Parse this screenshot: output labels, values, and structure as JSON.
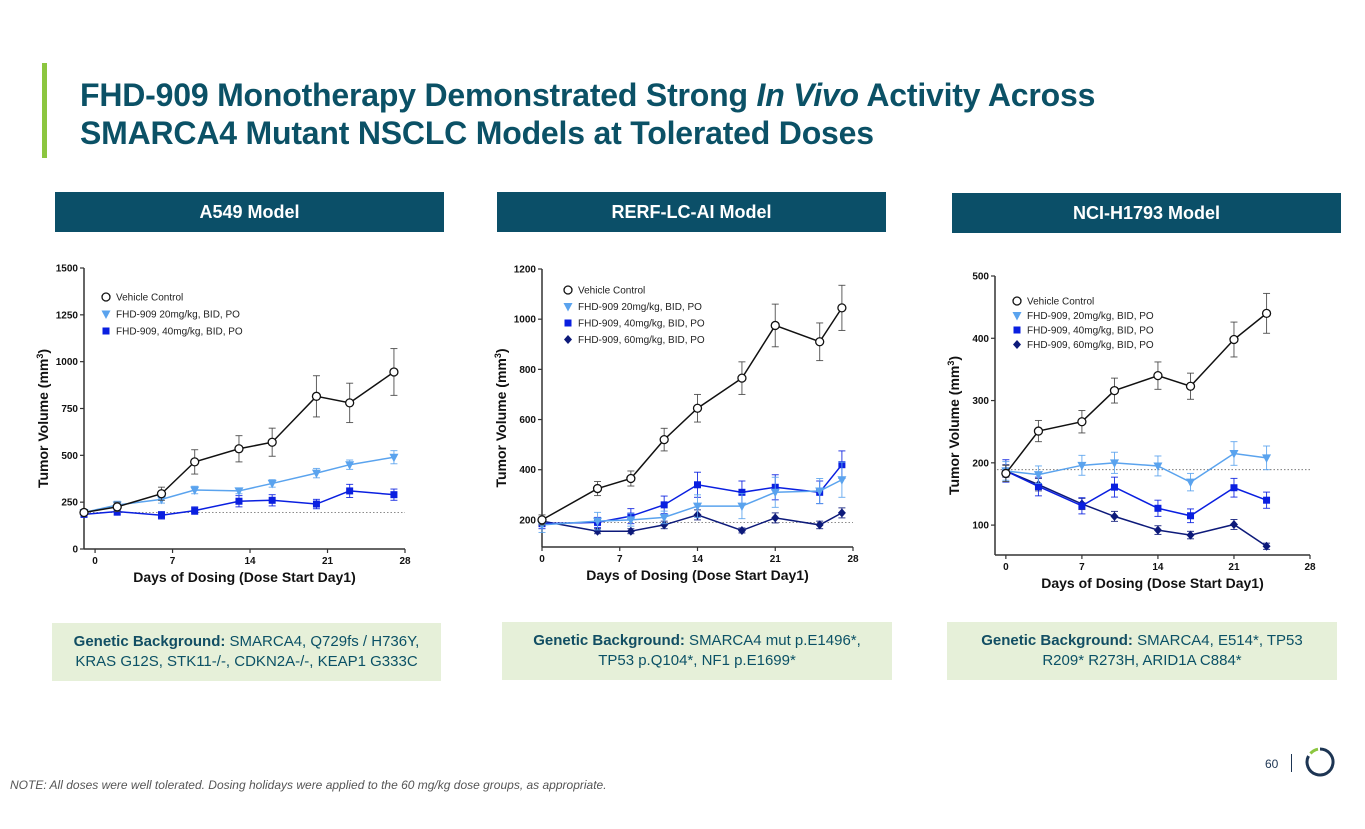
{
  "slide": {
    "title_part1": "FHD-909 Monotherapy Demonstrated Strong ",
    "title_italic": "In Vivo",
    "title_part2": " Activity Across",
    "title_line2": "SMARCA4 Mutant NSCLC Models at Tolerated Doses",
    "note": "NOTE: All doses were well tolerated. Dosing holidays were applied to the 60 mg/kg dose groups, as appropriate.",
    "page_number": "60",
    "logo_icon": "ring-logo-icon",
    "colors": {
      "title": "#0b5166",
      "accent": "#8cc63f",
      "header_bg": "#0b4f68",
      "genetic_bg": "#e6f0d9"
    }
  },
  "panels": [
    {
      "header": "A549 Model",
      "genetic_label": "Genetic Background:",
      "genetic_text": " SMARCA4, Q729fs / H736Y, KRAS G12S, STK11-/-, CDKN2A-/-, KEAP1 G333C"
    },
    {
      "header": "RERF-LC-AI Model",
      "genetic_label": "Genetic Background:",
      "genetic_text": " SMARCA4 mut p.E1496*, TP53 p.Q104*, NF1 p.E1699*"
    },
    {
      "header": "NCI-H1793 Model",
      "genetic_label": "Genetic Background:",
      "genetic_text": " SMARCA4, E514*, TP53 R209* R273H, ARID1A C884*"
    }
  ],
  "chart_data": [
    {
      "type": "line",
      "title": "A549 Model",
      "xlabel": "Days of Dosing (Dose Start Day1)",
      "ylabel": "Tumor Volume (mm3)",
      "xlim": [
        -1,
        28
      ],
      "ylim": [
        0,
        1500
      ],
      "xticks": [
        0,
        7,
        14,
        21,
        28
      ],
      "yticks": [
        0,
        250,
        500,
        750,
        1000,
        1250,
        1500
      ],
      "baseline": 195,
      "legend": "top-left",
      "series": [
        {
          "name": "Vehicle Control",
          "marker": "circle-open",
          "color": "#111111",
          "x": [
            -1,
            2,
            6,
            9,
            13,
            16,
            20,
            23,
            27
          ],
          "y": [
            195,
            225,
            295,
            465,
            535,
            570,
            815,
            780,
            945
          ],
          "err": [
            15,
            25,
            35,
            65,
            70,
            75,
            110,
            105,
            125
          ]
        },
        {
          "name": "FHD-909 20mg/kg, BID, PO",
          "marker": "triangle-down",
          "color": "#5aa3ee",
          "x": [
            -1,
            2,
            6,
            9,
            13,
            16,
            20,
            23,
            27
          ],
          "y": [
            195,
            235,
            265,
            315,
            310,
            350,
            405,
            450,
            490
          ],
          "err": [
            15,
            20,
            20,
            20,
            15,
            20,
            25,
            25,
            35
          ]
        },
        {
          "name": "FHD-909, 40mg/kg, BID, PO",
          "marker": "square",
          "color": "#0a1fe0",
          "x": [
            -1,
            2,
            6,
            9,
            13,
            16,
            20,
            23,
            27
          ],
          "y": [
            185,
            200,
            180,
            205,
            255,
            260,
            240,
            310,
            290
          ],
          "err": [
            15,
            20,
            20,
            20,
            30,
            30,
            25,
            35,
            30
          ]
        }
      ]
    },
    {
      "type": "line",
      "title": "RERF-LC-AI Model",
      "xlabel": "Days of Dosing (Dose Start Day1)",
      "ylabel": "Tumor Volume (mm3)",
      "xlim": [
        0,
        28
      ],
      "ylim": [
        92,
        1200
      ],
      "xticks": [
        0,
        7,
        14,
        21,
        28
      ],
      "yticks": [
        200,
        400,
        600,
        800,
        1000,
        1200
      ],
      "baseline": 190,
      "legend": "top-left",
      "series": [
        {
          "name": "Vehicle Control",
          "marker": "circle-open",
          "color": "#111111",
          "x": [
            0,
            5,
            8,
            11,
            14,
            18,
            21,
            25,
            27
          ],
          "y": [
            200,
            325,
            365,
            520,
            645,
            765,
            975,
            910,
            1045
          ],
          "err": [
            20,
            28,
            30,
            45,
            55,
            65,
            85,
            75,
            90
          ]
        },
        {
          "name": "FHD-909 20mg/kg, BID, PO",
          "marker": "triangle-down",
          "color": "#5aa3ee",
          "x": [
            0,
            5,
            8,
            11,
            14,
            18,
            21,
            25,
            27
          ],
          "y": [
            180,
            195,
            200,
            210,
            255,
            255,
            310,
            315,
            360
          ],
          "err": [
            30,
            35,
            25,
            25,
            45,
            50,
            60,
            50,
            70
          ]
        },
        {
          "name": "FHD-909, 40mg/kg, BID, PO",
          "marker": "square",
          "color": "#0a1fe0",
          "x": [
            0,
            5,
            8,
            11,
            14,
            18,
            21,
            25,
            27
          ],
          "y": [
            185,
            190,
            215,
            260,
            340,
            310,
            330,
            310,
            420
          ],
          "err": [
            20,
            20,
            30,
            35,
            50,
            45,
            50,
            45,
            55
          ]
        },
        {
          "name": "FHD-909, 60mg/kg, BID, PO",
          "marker": "diamond",
          "color": "#0d1a7a",
          "x": [
            0,
            5,
            8,
            11,
            14,
            18,
            21,
            25,
            27
          ],
          "y": [
            195,
            155,
            155,
            180,
            220,
            158,
            208,
            180,
            228
          ],
          "err": [
            15,
            10,
            10,
            15,
            20,
            10,
            20,
            15,
            20
          ]
        }
      ]
    },
    {
      "type": "line",
      "title": "NCI-H1793 Model",
      "xlabel": "Days of Dosing (Dose Start Day1)",
      "ylabel": "Tumor Volume (mm3)",
      "xlim": [
        -1,
        28
      ],
      "ylim": [
        52,
        500
      ],
      "xticks": [
        0,
        7,
        14,
        21,
        28
      ],
      "yticks": [
        100,
        200,
        300,
        400,
        500
      ],
      "baseline": 189,
      "legend": "top-left",
      "series": [
        {
          "name": "Vehicle Control",
          "marker": "circle-open",
          "color": "#111111",
          "x": [
            0,
            3,
            7,
            10,
            14,
            17,
            21,
            24
          ],
          "y": [
            183,
            251,
            266,
            316,
            340,
            323,
            398,
            440
          ],
          "err": [
            13,
            17,
            18,
            20,
            22,
            21,
            28,
            32
          ]
        },
        {
          "name": "FHD-909, 20mg/kg, BID, PO",
          "marker": "triangle-down",
          "color": "#5aa3ee",
          "x": [
            0,
            3,
            7,
            10,
            14,
            17,
            21,
            24
          ],
          "y": [
            187,
            181,
            196,
            200,
            195,
            169,
            215,
            208
          ],
          "err": [
            15,
            14,
            16,
            17,
            16,
            14,
            19,
            19
          ]
        },
        {
          "name": "FHD-909, 40mg/kg, BID, PO",
          "marker": "square",
          "color": "#0a1fe0",
          "x": [
            0,
            3,
            7,
            10,
            14,
            17,
            21,
            24
          ],
          "y": [
            187,
            162,
            131,
            161,
            127,
            115,
            160,
            140
          ],
          "err": [
            18,
            15,
            13,
            16,
            13,
            11,
            15,
            13
          ]
        },
        {
          "name": "FHD-909, 60mg/kg, BID, PO",
          "marker": "diamond",
          "color": "#0d1a7a",
          "x": [
            0,
            3,
            7,
            10,
            14,
            17,
            21,
            24
          ],
          "y": [
            187,
            165,
            134,
            114,
            92,
            84,
            101,
            66
          ],
          "err": [
            10,
            10,
            9,
            8,
            7,
            6,
            8,
            5
          ]
        }
      ]
    }
  ]
}
